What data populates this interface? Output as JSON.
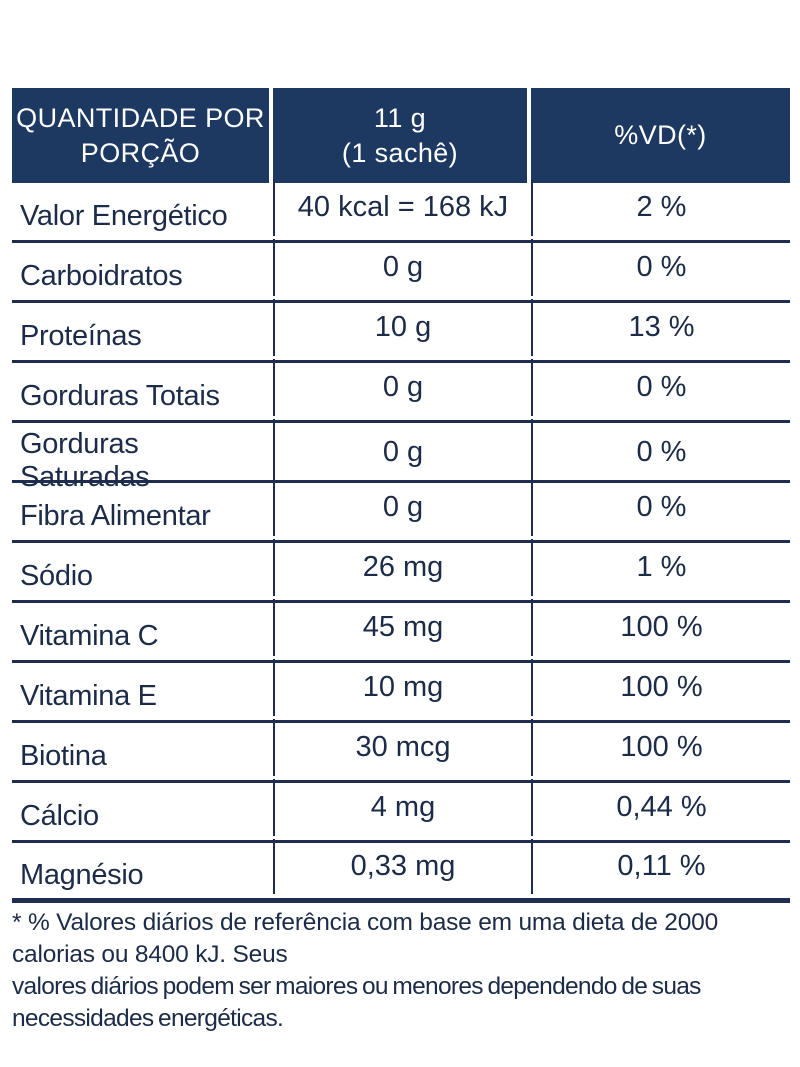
{
  "table": {
    "header": {
      "col1_line1": "QUANTIDADE POR",
      "col1_line2": "PORÇÃO",
      "col2_line1": "11 g",
      "col2_line2": "(1 sachê)",
      "col3": "%VD(*)"
    },
    "rows": [
      {
        "label": "Valor Energético",
        "amount": "40 kcal = 168 kJ",
        "vd": "2 %"
      },
      {
        "label": "Carboidratos",
        "amount": "0 g",
        "vd": "0 %"
      },
      {
        "label": "Proteínas",
        "amount": "10 g",
        "vd": "13 %"
      },
      {
        "label": "Gorduras Totais",
        "amount": "0 g",
        "vd": "0 %"
      },
      {
        "label": "Gorduras Saturadas",
        "amount": "0 g",
        "vd": "0 %"
      },
      {
        "label": "Fibra Alimentar",
        "amount": "0 g",
        "vd": "0 %"
      },
      {
        "label": "Sódio",
        "amount": "26 mg",
        "vd": "1 %"
      },
      {
        "label": "Vitamina C",
        "amount": "45 mg",
        "vd": "100 %"
      },
      {
        "label": "Vitamina E",
        "amount": "10 mg",
        "vd": "100 %"
      },
      {
        "label": "Biotina",
        "amount": "30 mcg",
        "vd": "100 %"
      },
      {
        "label": "Cálcio",
        "amount": "4 mg",
        "vd": "0,44 %"
      },
      {
        "label": "Magnésio",
        "amount": "0,33 mg",
        "vd": "0,11 %"
      }
    ],
    "footnote": {
      "line1": "* % Valores diários de referência com base em uma dieta de 2000 calorias ou 8400 kJ. Seus",
      "line2": "valores diários podem ser maiores ou menores dependendo de suas necessidades energéticas."
    }
  },
  "colors": {
    "header_bg": "#1d3961",
    "header_text": "#ffffff",
    "body_text": "#1c2b47",
    "grid_line": "#1e2d50",
    "background": "#ffffff"
  }
}
